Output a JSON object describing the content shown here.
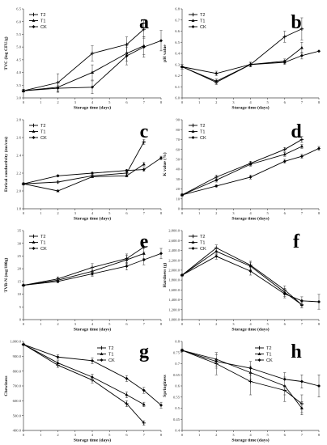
{
  "chart_data": [
    {
      "type": "line",
      "panel_label": "a",
      "xlabel": "Storage time (days)",
      "ylabel": "TVC (log CFU/g)",
      "xlim": [
        0,
        8
      ],
      "ylim": [
        3.0,
        6.5
      ],
      "xticks": [
        0,
        1,
        2,
        3,
        4,
        5,
        6,
        7,
        8
      ],
      "yticks": [
        3.0,
        3.5,
        4.0,
        4.5,
        5.0,
        5.5,
        6.0,
        6.5
      ],
      "ytick_labels": [
        "3.0",
        "3.5",
        "4.0",
        "4.5",
        "5.0",
        "5.5",
        "6.0",
        "6.5"
      ],
      "legend_position": "top-left",
      "series": [
        {
          "name": "T2",
          "marker": "plus",
          "x": [
            0,
            2,
            4,
            6,
            7
          ],
          "y": [
            3.28,
            3.6,
            4.75,
            5.1,
            5.7
          ],
          "err": [
            0.05,
            0.35,
            0.3,
            0.3,
            0.35
          ]
        },
        {
          "name": "T1",
          "marker": "triangle",
          "x": [
            0,
            2,
            4,
            6,
            7
          ],
          "y": [
            3.28,
            3.42,
            4.0,
            4.75,
            5.05
          ],
          "err": [
            0.05,
            0.2,
            0.3,
            0.3,
            0.35
          ]
        },
        {
          "name": "CK",
          "marker": "diamond",
          "x": [
            0,
            2,
            4,
            6,
            7,
            8
          ],
          "y": [
            3.28,
            3.38,
            3.42,
            4.65,
            5.0,
            5.25
          ],
          "err": [
            0.05,
            0.1,
            0.25,
            0.35,
            0.4,
            0.4
          ]
        }
      ]
    },
    {
      "type": "line",
      "panel_label": "b",
      "xlabel": "Storage time (days)",
      "ylabel": "pH value",
      "xlim": [
        0,
        8
      ],
      "ylim": [
        6.0,
        6.8
      ],
      "xticks": [
        0,
        1,
        2,
        3,
        4,
        5,
        6,
        7,
        8
      ],
      "yticks": [
        6.0,
        6.1,
        6.2,
        6.3,
        6.4,
        6.5,
        6.6,
        6.7,
        6.8
      ],
      "ytick_labels": [
        "6.0",
        "6.1",
        "6.2",
        "6.3",
        "6.4",
        "6.5",
        "6.6",
        "6.7",
        "6.8"
      ],
      "legend_position": "top-left",
      "series": [
        {
          "name": "T2",
          "marker": "plus",
          "x": [
            0,
            2,
            4,
            6,
            7
          ],
          "y": [
            6.28,
            6.14,
            6.3,
            6.55,
            6.62
          ],
          "err": [
            0.02,
            0.02,
            0.02,
            0.05,
            0.1
          ]
        },
        {
          "name": "T1",
          "marker": "triangle",
          "x": [
            0,
            2,
            4,
            6,
            7
          ],
          "y": [
            6.28,
            6.15,
            6.3,
            6.33,
            6.45
          ],
          "err": [
            0.02,
            0.02,
            0.02,
            0.02,
            0.05
          ]
        },
        {
          "name": "CK",
          "marker": "diamond",
          "x": [
            0,
            2,
            4,
            6,
            7,
            8
          ],
          "y": [
            6.28,
            6.22,
            6.3,
            6.32,
            6.38,
            6.42
          ],
          "err": [
            0.02,
            0.02,
            0.02,
            0.02,
            0.03,
            0
          ]
        }
      ]
    },
    {
      "type": "line",
      "panel_label": "c",
      "xlabel": "Storage time (days)",
      "ylabel": "Etrical conductivity (ms/cm)",
      "xlim": [
        0,
        8
      ],
      "ylim": [
        1.8,
        2.8
      ],
      "xticks": [
        0,
        1,
        2,
        3,
        4,
        5,
        6,
        7,
        8
      ],
      "yticks": [
        1.8,
        2.0,
        2.2,
        2.4,
        2.6,
        2.8
      ],
      "ytick_labels": [
        "1.8",
        "2.0",
        "2.2",
        "2.4",
        "2.6",
        "2.8"
      ],
      "legend_position": "top-left",
      "series": [
        {
          "name": "T2",
          "marker": "plus",
          "x": [
            0,
            2,
            4,
            6,
            7
          ],
          "y": [
            2.08,
            2.1,
            2.17,
            2.2,
            2.55
          ],
          "err": [
            0.01,
            0.01,
            0.01,
            0.01,
            0.03
          ]
        },
        {
          "name": "T1",
          "marker": "triangle",
          "x": [
            0,
            2,
            4,
            6,
            7
          ],
          "y": [
            2.08,
            2.0,
            2.16,
            2.17,
            2.3
          ],
          "err": [
            0.01,
            0.01,
            0.01,
            0.01,
            0.02
          ]
        },
        {
          "name": "CK",
          "marker": "diamond",
          "x": [
            0,
            2,
            4,
            6,
            7,
            8
          ],
          "y": [
            2.08,
            2.17,
            2.2,
            2.23,
            2.24,
            2.37
          ],
          "err": [
            0.01,
            0.01,
            0.01,
            0.01,
            0.02,
            0.02
          ]
        }
      ]
    },
    {
      "type": "line",
      "panel_label": "d",
      "xlabel": "Storage time (days)",
      "ylabel": "K value (%)",
      "xlim": [
        0,
        8
      ],
      "ylim": [
        0,
        90
      ],
      "xticks": [
        0,
        1,
        2,
        3,
        4,
        5,
        6,
        7,
        8
      ],
      "yticks": [
        0,
        10,
        20,
        30,
        40,
        50,
        60,
        70,
        80,
        90
      ],
      "ytick_labels": [
        "0",
        "10",
        "20",
        "30",
        "40",
        "50",
        "60",
        "70",
        "80",
        "90"
      ],
      "legend_position": "top-left",
      "series": [
        {
          "name": "T2",
          "marker": "plus",
          "x": [
            0,
            2,
            4,
            6,
            7
          ],
          "y": [
            14,
            32,
            46,
            60,
            70
          ],
          "err": [
            1,
            2,
            2,
            2,
            3
          ]
        },
        {
          "name": "T1",
          "marker": "triangle",
          "x": [
            0,
            2,
            4,
            6,
            7
          ],
          "y": [
            14,
            29,
            45,
            55,
            63
          ],
          "err": [
            1,
            2,
            2,
            2,
            2
          ]
        },
        {
          "name": "CK",
          "marker": "diamond",
          "x": [
            0,
            2,
            4,
            6,
            7,
            8
          ],
          "y": [
            14,
            23,
            32,
            48,
            53,
            61
          ],
          "err": [
            1,
            1,
            2,
            2,
            2,
            2
          ]
        }
      ]
    },
    {
      "type": "line",
      "panel_label": "e",
      "xlabel": "Storage time (days)",
      "ylabel": "TVB-N (mg/100g)",
      "xlim": [
        0,
        8
      ],
      "ylim": [
        0,
        35
      ],
      "xticks": [
        0,
        1,
        2,
        3,
        4,
        5,
        6,
        7,
        8
      ],
      "yticks": [
        0,
        5,
        10,
        15,
        20,
        25,
        30,
        35
      ],
      "ytick_labels": [
        "0",
        "5",
        "10",
        "15",
        "20",
        "25",
        "30",
        "35"
      ],
      "legend_position": "top-left",
      "series": [
        {
          "name": "T2",
          "marker": "plus",
          "x": [
            0,
            2,
            4,
            6,
            7
          ],
          "y": [
            13.5,
            16,
            20.5,
            24,
            28.5
          ],
          "err": [
            0.3,
            0.8,
            1.5,
            1.8,
            2.0
          ]
        },
        {
          "name": "T1",
          "marker": "triangle",
          "x": [
            0,
            2,
            4,
            6,
            7
          ],
          "y": [
            13.5,
            15.5,
            19,
            23.5,
            26
          ],
          "err": [
            0.3,
            0.8,
            1.5,
            1.8,
            2.0
          ]
        },
        {
          "name": "CK",
          "marker": "diamond",
          "x": [
            0,
            2,
            4,
            6,
            7,
            8
          ],
          "y": [
            13.5,
            15,
            18,
            21,
            23.5,
            26
          ],
          "err": [
            0.3,
            0.5,
            1.0,
            1.5,
            2.0,
            2.0
          ]
        }
      ]
    },
    {
      "type": "line",
      "panel_label": "f",
      "xlabel": "Storage time (days)",
      "ylabel": "Hardness (g)",
      "xlim": [
        0,
        8
      ],
      "ylim": [
        1000,
        2800
      ],
      "xticks": [
        0,
        1,
        2,
        3,
        4,
        5,
        6,
        7,
        8
      ],
      "yticks": [
        1000,
        1200,
        1400,
        1600,
        1800,
        2000,
        2200,
        2400,
        2600,
        2800
      ],
      "ytick_labels": [
        "1,000.0",
        "1,200.0",
        "1,400.0",
        "1,600.0",
        "1,800.0",
        "2,000.0",
        "2,200.0",
        "2,400.0",
        "2,600.0",
        "2,800.0"
      ],
      "legend_position": "top-left",
      "series": [
        {
          "name": "T2",
          "marker": "plus",
          "x": [
            0,
            2,
            4,
            6,
            7
          ],
          "y": [
            1900,
            2450,
            2100,
            1600,
            1300
          ],
          "err": [
            15,
            60,
            80,
            80,
            60
          ]
        },
        {
          "name": "T1",
          "marker": "triangle",
          "x": [
            0,
            2,
            4,
            6,
            7
          ],
          "y": [
            1900,
            2380,
            2080,
            1550,
            1300
          ],
          "err": [
            15,
            60,
            80,
            80,
            60
          ]
        },
        {
          "name": "CK",
          "marker": "diamond",
          "x": [
            0,
            2,
            4,
            6,
            7,
            8
          ],
          "y": [
            1900,
            2280,
            1980,
            1520,
            1380,
            1360
          ],
          "err": [
            15,
            60,
            80,
            80,
            80,
            150
          ]
        }
      ]
    },
    {
      "type": "line",
      "panel_label": "g",
      "xlabel": "Storage time (days)",
      "ylabel": "Chewiness",
      "xlim": [
        0,
        8
      ],
      "ylim": [
        400,
        1000
      ],
      "xticks": [
        0,
        1,
        2,
        3,
        4,
        5,
        6,
        7,
        8
      ],
      "yticks": [
        400,
        500,
        600,
        700,
        800,
        900,
        1000
      ],
      "ytick_labels": [
        "400.0",
        "500.0",
        "600.0",
        "700.0",
        "800.0",
        "900.0",
        "1,000.0"
      ],
      "legend_position": "top-right",
      "series": [
        {
          "name": "T2",
          "marker": "plus",
          "x": [
            0,
            2,
            4,
            6,
            7
          ],
          "y": [
            980,
            840,
            740,
            580,
            450
          ],
          "err": [
            5,
            15,
            20,
            20,
            15
          ]
        },
        {
          "name": "T1",
          "marker": "triangle",
          "x": [
            0,
            2,
            4,
            6,
            7
          ],
          "y": [
            980,
            855,
            760,
            640,
            575
          ],
          "err": [
            5,
            15,
            20,
            20,
            15
          ]
        },
        {
          "name": "CK",
          "marker": "diamond",
          "x": [
            0,
            2,
            4,
            6,
            7,
            8
          ],
          "y": [
            980,
            895,
            870,
            750,
            670,
            570
          ],
          "err": [
            5,
            15,
            20,
            20,
            20,
            20
          ]
        }
      ]
    },
    {
      "type": "line",
      "panel_label": "h",
      "xlabel": "Storage time (days)",
      "ylabel": "Springiness",
      "xlim": [
        0,
        8
      ],
      "ylim": [
        0.4,
        0.8
      ],
      "xticks": [
        0,
        1,
        2,
        3,
        4,
        5,
        6,
        7,
        8
      ],
      "yticks": [
        0.4,
        0.45,
        0.5,
        0.55,
        0.6,
        0.65,
        0.7,
        0.75,
        0.8
      ],
      "ytick_labels": [
        "0.4",
        "0.45",
        "0.5",
        "0.55",
        "0.6",
        "0.65",
        "0.7",
        "0.75",
        "0.8"
      ],
      "legend_position": "top-right",
      "series": [
        {
          "name": "T2",
          "marker": "plus",
          "x": [
            0,
            2,
            4,
            6,
            7
          ],
          "y": [
            0.76,
            0.7,
            0.62,
            0.58,
            0.52
          ],
          "err": [
            0.005,
            0.05,
            0.06,
            0.05,
            0.04
          ]
        },
        {
          "name": "T1",
          "marker": "triangle",
          "x": [
            0,
            2,
            4,
            6,
            7
          ],
          "y": [
            0.76,
            0.72,
            0.66,
            0.6,
            0.5
          ],
          "err": [
            0.005,
            0.03,
            0.03,
            0.04,
            0.03
          ]
        },
        {
          "name": "CK",
          "marker": "diamond",
          "x": [
            0,
            2,
            4,
            6,
            7,
            8
          ],
          "y": [
            0.76,
            0.71,
            0.68,
            0.63,
            0.62,
            0.6
          ],
          "err": [
            0.005,
            0.03,
            0.03,
            0.03,
            0.03,
            0.05
          ]
        }
      ]
    }
  ]
}
